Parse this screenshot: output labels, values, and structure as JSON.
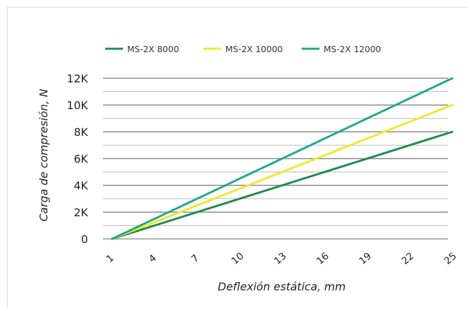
{
  "chart_data": {
    "type": "line",
    "title": "",
    "xlabel": "Deflexión estática, mm",
    "ylabel": "Carga de compresión, N",
    "x": [
      1,
      4,
      7,
      10,
      13,
      16,
      19,
      22,
      25
    ],
    "x_tick_labels": [
      "1",
      "4",
      "7",
      "10",
      "13",
      "16",
      "19",
      "22",
      "25"
    ],
    "ylim": [
      0,
      12000
    ],
    "y_ticks": [
      0,
      2000,
      4000,
      6000,
      8000,
      10000,
      12000
    ],
    "y_tick_labels": [
      "0",
      "2K",
      "4K",
      "6K",
      "8K",
      "10K",
      "12K"
    ],
    "grid": true,
    "legend_position": "top",
    "series": [
      {
        "name": "MS-2X 8000",
        "color": "#1f8a4c",
        "points": [
          [
            1,
            0
          ],
          [
            25,
            8000
          ]
        ]
      },
      {
        "name": "MS-2X 10000",
        "color": "#f2e829",
        "points": [
          [
            1,
            0
          ],
          [
            25,
            10000
          ]
        ]
      },
      {
        "name": "MS-2X 12000",
        "color": "#1aa88c",
        "points": [
          [
            1,
            0
          ],
          [
            25,
            12000
          ]
        ]
      }
    ]
  }
}
